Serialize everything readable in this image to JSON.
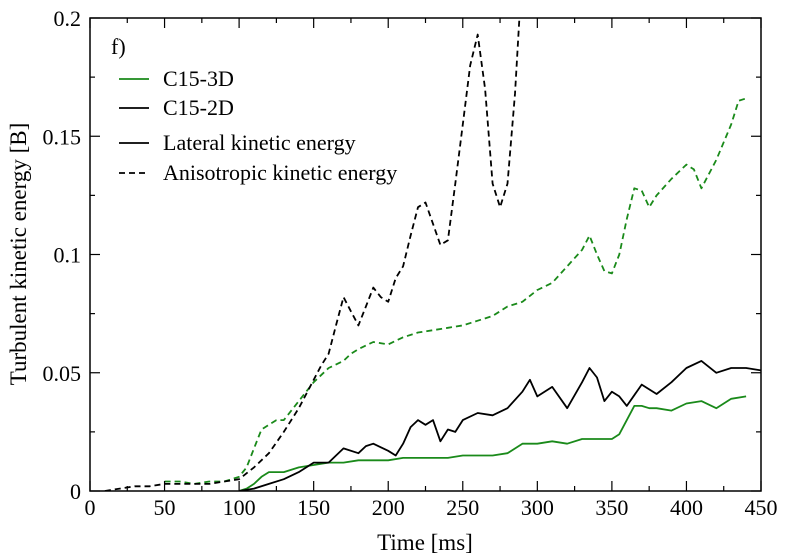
{
  "chart_data": {
    "type": "line",
    "panel_label": "f)",
    "xlabel": "Time [ms]",
    "ylabel": "Turbulent kinetic energy [B]",
    "xlim": [
      0,
      450
    ],
    "ylim": [
      0,
      0.2
    ],
    "xticks": [
      0,
      50,
      100,
      150,
      200,
      250,
      300,
      350,
      400,
      450
    ],
    "xtick_labels": [
      "0",
      "50",
      "100",
      "150",
      "200",
      "250",
      "300",
      "350",
      "400",
      "450"
    ],
    "yticks": [
      0,
      0.05,
      0.1,
      0.15,
      0.2
    ],
    "ytick_labels": [
      "0",
      "0.05",
      "0.1",
      "0.15",
      "0.2"
    ],
    "grid": false,
    "legend_position": "top-left",
    "legend": [
      {
        "label": "C15-3D",
        "color": "#1a8a1a",
        "style": "solid"
      },
      {
        "label": "C15-2D",
        "color": "#000000",
        "style": "solid"
      },
      {
        "label": "Lateral kinetic energy",
        "color": "#000000",
        "style": "solid"
      },
      {
        "label": "Anisotropic kinetic energy",
        "color": "#000000",
        "style": "dashed"
      }
    ],
    "series": [
      {
        "name": "C15-3D lateral kinetic energy",
        "color": "#1a8a1a",
        "style": "solid",
        "x": [
          100,
          105,
          110,
          115,
          120,
          130,
          140,
          150,
          160,
          170,
          180,
          190,
          200,
          210,
          220,
          230,
          240,
          250,
          260,
          270,
          280,
          290,
          300,
          310,
          320,
          330,
          340,
          350,
          355,
          360,
          365,
          370,
          375,
          380,
          390,
          400,
          410,
          420,
          430,
          440
        ],
        "y": [
          0,
          0.001,
          0.003,
          0.006,
          0.008,
          0.008,
          0.01,
          0.011,
          0.012,
          0.012,
          0.013,
          0.013,
          0.013,
          0.014,
          0.014,
          0.014,
          0.014,
          0.015,
          0.015,
          0.015,
          0.016,
          0.02,
          0.02,
          0.021,
          0.02,
          0.022,
          0.022,
          0.022,
          0.024,
          0.03,
          0.036,
          0.036,
          0.035,
          0.035,
          0.034,
          0.037,
          0.038,
          0.035,
          0.039,
          0.04
        ]
      },
      {
        "name": "C15-3D anisotropic kinetic energy",
        "color": "#1a8a1a",
        "style": "dashed",
        "x": [
          50,
          60,
          70,
          80,
          90,
          100,
          105,
          110,
          115,
          120,
          125,
          130,
          140,
          150,
          160,
          170,
          175,
          180,
          190,
          200,
          210,
          220,
          230,
          240,
          250,
          260,
          270,
          280,
          290,
          300,
          310,
          320,
          330,
          335,
          340,
          345,
          350,
          355,
          360,
          365,
          370,
          375,
          380,
          390,
          400,
          405,
          410,
          420,
          430,
          435,
          440
        ],
        "y": [
          0.004,
          0.004,
          0.003,
          0.004,
          0.004,
          0.006,
          0.01,
          0.018,
          0.026,
          0.028,
          0.03,
          0.03,
          0.038,
          0.046,
          0.052,
          0.055,
          0.058,
          0.06,
          0.063,
          0.062,
          0.065,
          0.067,
          0.068,
          0.069,
          0.07,
          0.072,
          0.074,
          0.078,
          0.08,
          0.085,
          0.088,
          0.095,
          0.102,
          0.108,
          0.1,
          0.093,
          0.092,
          0.1,
          0.115,
          0.128,
          0.127,
          0.12,
          0.125,
          0.132,
          0.138,
          0.136,
          0.128,
          0.14,
          0.155,
          0.165,
          0.166
        ]
      },
      {
        "name": "C15-2D lateral kinetic energy",
        "color": "#000000",
        "style": "solid",
        "x": [
          100,
          110,
          120,
          130,
          140,
          150,
          160,
          170,
          180,
          185,
          190,
          200,
          205,
          210,
          215,
          220,
          225,
          230,
          235,
          240,
          245,
          250,
          260,
          270,
          280,
          290,
          295,
          300,
          310,
          320,
          330,
          335,
          340,
          345,
          350,
          355,
          360,
          370,
          380,
          390,
          400,
          410,
          420,
          430,
          440,
          450
        ],
        "y": [
          0,
          0.001,
          0.003,
          0.005,
          0.008,
          0.012,
          0.012,
          0.018,
          0.016,
          0.019,
          0.02,
          0.017,
          0.015,
          0.02,
          0.027,
          0.03,
          0.028,
          0.03,
          0.021,
          0.026,
          0.025,
          0.03,
          0.033,
          0.032,
          0.035,
          0.042,
          0.047,
          0.04,
          0.044,
          0.035,
          0.046,
          0.052,
          0.048,
          0.038,
          0.042,
          0.04,
          0.036,
          0.045,
          0.041,
          0.046,
          0.052,
          0.055,
          0.05,
          0.052,
          0.052,
          0.051
        ]
      },
      {
        "name": "C15-2D anisotropic kinetic energy",
        "color": "#000000",
        "style": "dashed",
        "x": [
          10,
          20,
          30,
          40,
          50,
          60,
          70,
          80,
          90,
          100,
          110,
          120,
          130,
          140,
          150,
          155,
          160,
          165,
          170,
          175,
          180,
          185,
          190,
          195,
          200,
          205,
          210,
          215,
          220,
          225,
          230,
          235,
          240,
          245,
          250,
          255,
          260,
          265,
          270,
          275,
          280,
          285,
          288
        ],
        "y": [
          0,
          0.001,
          0.002,
          0.002,
          0.003,
          0.003,
          0.003,
          0.003,
          0.004,
          0.005,
          0.01,
          0.016,
          0.025,
          0.035,
          0.047,
          0.053,
          0.058,
          0.07,
          0.082,
          0.076,
          0.07,
          0.078,
          0.086,
          0.082,
          0.08,
          0.09,
          0.095,
          0.108,
          0.12,
          0.122,
          0.113,
          0.104,
          0.106,
          0.13,
          0.155,
          0.18,
          0.193,
          0.17,
          0.13,
          0.12,
          0.13,
          0.168,
          0.2
        ]
      }
    ]
  }
}
